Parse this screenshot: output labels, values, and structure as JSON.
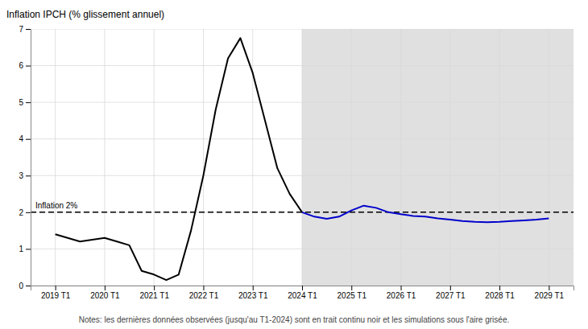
{
  "chart_data": {
    "type": "line",
    "ylabel": "Inflation IPCH (% glissement annuel)",
    "note": "Notes: les dernières données observées (jusqu'au T1-2024) sont en trait continu noir et les simulations sous l'aire grisée.",
    "xlim": [
      -0.5,
      10.5
    ],
    "ylim": [
      0,
      7
    ],
    "xticks": [
      {
        "value": 0,
        "label": "2019 T1"
      },
      {
        "value": 1,
        "label": "2020 T1"
      },
      {
        "value": 2,
        "label": "2021 T1"
      },
      {
        "value": 3,
        "label": "2022 T1"
      },
      {
        "value": 4,
        "label": "2023 T1"
      },
      {
        "value": 5,
        "label": "2024 T1"
      },
      {
        "value": 6,
        "label": "2025 T1"
      },
      {
        "value": 7,
        "label": "2026 T1"
      },
      {
        "value": 8,
        "label": "2027 T1"
      },
      {
        "value": 9,
        "label": "2028 T1"
      },
      {
        "value": 10,
        "label": "2029 T1"
      }
    ],
    "yticks": [
      0,
      1,
      2,
      3,
      4,
      5,
      6,
      7
    ],
    "grid": true,
    "reference_line": {
      "value": 2.0,
      "label": "Inflation 2%",
      "line_style": "dashed"
    },
    "shaded_region": {
      "start": 5.0,
      "end": 10.5,
      "color": "#e0e0e0"
    },
    "series": [
      {
        "color": "#000000",
        "x": [
          0,
          0.25,
          0.5,
          0.75,
          1.0,
          1.25,
          1.5,
          1.75,
          2.0,
          2.25,
          2.5,
          2.75,
          3.0,
          3.25,
          3.5,
          3.75,
          4.0,
          4.25,
          4.5,
          4.75,
          5.0
        ],
        "values": [
          1.4,
          1.3,
          1.2,
          1.25,
          1.3,
          1.2,
          1.1,
          0.4,
          0.3,
          0.15,
          0.3,
          1.5,
          3.0,
          4.8,
          6.2,
          6.75,
          5.8,
          4.5,
          3.2,
          2.5,
          2.0
        ]
      },
      {
        "color": "#0000cc",
        "x": [
          5.0,
          5.25,
          5.5,
          5.75,
          6.0,
          6.25,
          6.5,
          6.75,
          7.0,
          7.25,
          7.5,
          7.75,
          8.0,
          8.25,
          8.5,
          8.75,
          9.0,
          9.25,
          9.5,
          9.75,
          10.0
        ],
        "values": [
          2.0,
          1.88,
          1.82,
          1.88,
          2.05,
          2.18,
          2.12,
          2.0,
          1.95,
          1.9,
          1.88,
          1.83,
          1.8,
          1.76,
          1.74,
          1.73,
          1.74,
          1.76,
          1.78,
          1.8,
          1.83
        ]
      }
    ]
  }
}
